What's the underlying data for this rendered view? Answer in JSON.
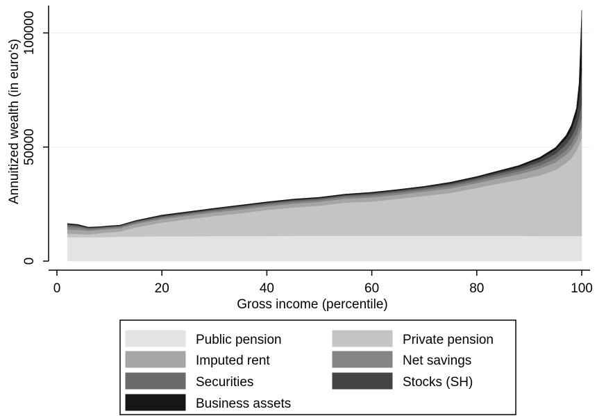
{
  "chart_data": {
    "type": "area",
    "stacked": true,
    "xlabel": "Gross income (percentile)",
    "ylabel": "Annuitized wealth (in euro's)",
    "xlim": [
      0,
      100
    ],
    "ylim": [
      0,
      112000
    ],
    "xticks": [
      0,
      20,
      40,
      60,
      80,
      100
    ],
    "yticks": [
      0,
      50000,
      100000
    ],
    "ytick_labels": [
      "0",
      "50000",
      "100000"
    ],
    "grid": "horizontal",
    "legend_position": "bottom",
    "x": [
      2,
      4,
      6,
      8,
      10,
      12,
      15,
      20,
      25,
      30,
      35,
      40,
      45,
      50,
      55,
      60,
      65,
      70,
      75,
      80,
      84,
      88,
      92,
      95,
      97,
      98,
      99,
      99.5,
      100
    ],
    "series": [
      {
        "name": "Public pension",
        "color": "#e3e3e3",
        "values": [
          10500,
          10500,
          10500,
          10500,
          10600,
          10700,
          10800,
          10900,
          10900,
          11000,
          11000,
          11000,
          11100,
          11100,
          11100,
          11100,
          11100,
          11100,
          11100,
          11100,
          11100,
          11100,
          11000,
          11000,
          11000,
          11000,
          11000,
          11000,
          11000
        ]
      },
      {
        "name": "Private pension",
        "color": "#c4c4c4",
        "values": [
          1600,
          1400,
          1200,
          1700,
          2000,
          2300,
          4000,
          6000,
          7500,
          8800,
          10000,
          11400,
          12400,
          13200,
          14600,
          15000,
          16200,
          17500,
          18800,
          21000,
          22800,
          24500,
          26500,
          29000,
          32000,
          34000,
          37500,
          40000,
          43000
        ]
      },
      {
        "name": "Imputed rent",
        "color": "#a5a5a5",
        "values": [
          1800,
          1800,
          1600,
          1500,
          1500,
          1400,
          1500,
          1500,
          1500,
          1600,
          1600,
          1600,
          1700,
          1700,
          1700,
          1800,
          1800,
          1900,
          2000,
          2100,
          2300,
          2500,
          3000,
          3300,
          3600,
          3900,
          4200,
          4500,
          5000
        ]
      },
      {
        "name": "Net savings",
        "color": "#858585",
        "values": [
          1200,
          1100,
          700,
          600,
          600,
          600,
          600,
          700,
          700,
          700,
          800,
          800,
          800,
          800,
          800,
          900,
          900,
          900,
          1000,
          1000,
          1100,
          1200,
          1400,
          1700,
          2000,
          2400,
          2800,
          3200,
          4000
        ]
      },
      {
        "name": "Securities",
        "color": "#6a6a6a",
        "values": [
          800,
          700,
          500,
          400,
          400,
          400,
          500,
          500,
          500,
          500,
          600,
          600,
          600,
          600,
          600,
          700,
          700,
          700,
          800,
          900,
          1000,
          1100,
          1500,
          2000,
          2500,
          3000,
          3500,
          4500,
          6000
        ]
      },
      {
        "name": "Stocks (SH)",
        "color": "#444444",
        "values": [
          300,
          300,
          200,
          200,
          200,
          200,
          200,
          300,
          300,
          300,
          300,
          300,
          300,
          300,
          300,
          400,
          400,
          400,
          500,
          600,
          700,
          900,
          1300,
          1800,
          2500,
          3200,
          5000,
          8000,
          15000
        ]
      },
      {
        "name": "Business assets",
        "color": "#161616",
        "values": [
          300,
          300,
          200,
          200,
          200,
          200,
          200,
          300,
          300,
          300,
          300,
          300,
          300,
          300,
          300,
          300,
          300,
          300,
          400,
          400,
          500,
          600,
          800,
          1000,
          1500,
          2000,
          3000,
          7000,
          26000
        ]
      }
    ]
  }
}
